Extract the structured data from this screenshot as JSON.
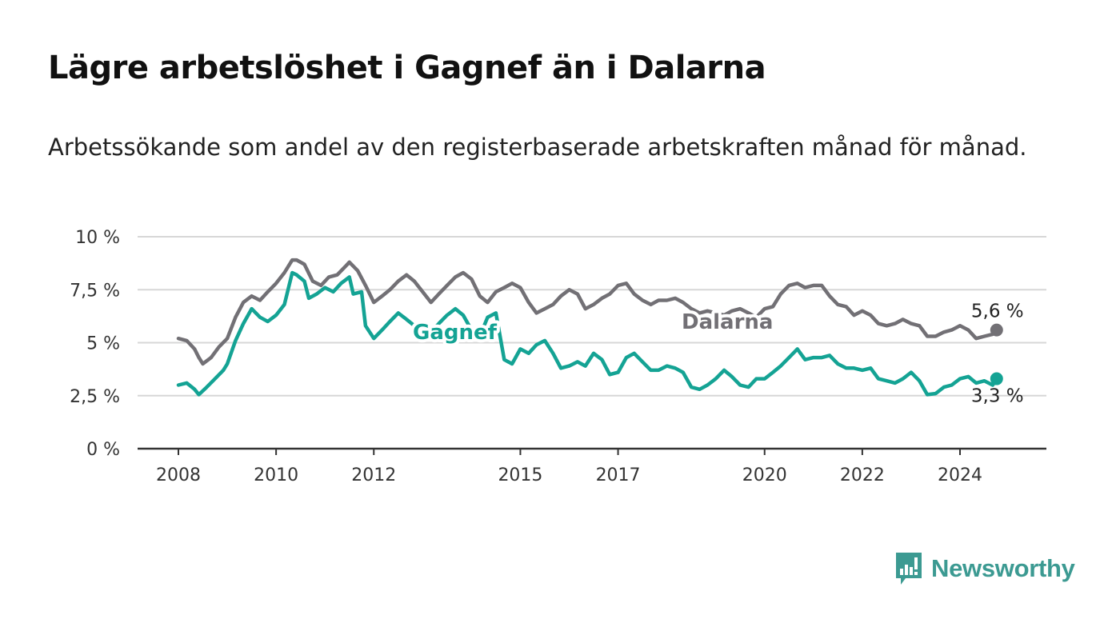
{
  "title": "Lägre arbetslöshet i Gagnef än i Dalarna",
  "subtitle": "Arbetssökande som andel av den registerbaserade arbetskraften månad för månad.",
  "brand": {
    "name": "Newsworthy",
    "color": "#3c9a92",
    "icon": "bar-chart-speech-bubble-icon"
  },
  "chart_data": {
    "type": "line",
    "title": "Lägre arbetslöshet i Gagnef än i Dalarna",
    "subtitle": "Arbetssökande som andel av den registerbaserade arbetskraften månad för månad.",
    "xlabel": "",
    "ylabel": "",
    "x_range": [
      2008.0,
      2024.75
    ],
    "ylim": [
      0,
      10
    ],
    "y_ticks": [
      {
        "value": 0,
        "label": "0 %"
      },
      {
        "value": 2.5,
        "label": "2,5 %"
      },
      {
        "value": 5,
        "label": "5 %"
      },
      {
        "value": 7.5,
        "label": "7,5 %"
      },
      {
        "value": 10,
        "label": "10 %"
      }
    ],
    "x_ticks": [
      {
        "value": 2008,
        "label": "2008"
      },
      {
        "value": 2010,
        "label": "2010"
      },
      {
        "value": 2012,
        "label": "2012"
      },
      {
        "value": 2015,
        "label": "2015"
      },
      {
        "value": 2017,
        "label": "2017"
      },
      {
        "value": 2020,
        "label": "2020"
      },
      {
        "value": 2022,
        "label": "2022"
      },
      {
        "value": 2024,
        "label": "2024"
      }
    ],
    "grid": true,
    "legend": "direct labels on lines",
    "series": [
      {
        "name": "Dalarna",
        "color": "#727075",
        "end_label": "5,6 %",
        "points": [
          [
            2008.0,
            5.2
          ],
          [
            2008.17,
            5.1
          ],
          [
            2008.33,
            4.7
          ],
          [
            2008.42,
            4.3
          ],
          [
            2008.5,
            4.0
          ],
          [
            2008.67,
            4.3
          ],
          [
            2008.83,
            4.8
          ],
          [
            2009.0,
            5.2
          ],
          [
            2009.17,
            6.2
          ],
          [
            2009.33,
            6.9
          ],
          [
            2009.5,
            7.2
          ],
          [
            2009.67,
            7.0
          ],
          [
            2009.83,
            7.4
          ],
          [
            2010.0,
            7.8
          ],
          [
            2010.17,
            8.3
          ],
          [
            2010.33,
            8.9
          ],
          [
            2010.42,
            8.9
          ],
          [
            2010.58,
            8.7
          ],
          [
            2010.75,
            7.9
          ],
          [
            2010.92,
            7.7
          ],
          [
            2011.08,
            8.1
          ],
          [
            2011.25,
            8.2
          ],
          [
            2011.42,
            8.6
          ],
          [
            2011.5,
            8.8
          ],
          [
            2011.67,
            8.4
          ],
          [
            2011.83,
            7.7
          ],
          [
            2012.0,
            6.9
          ],
          [
            2012.17,
            7.2
          ],
          [
            2012.33,
            7.5
          ],
          [
            2012.5,
            7.9
          ],
          [
            2012.67,
            8.2
          ],
          [
            2012.83,
            7.9
          ],
          [
            2013.0,
            7.4
          ],
          [
            2013.17,
            6.9
          ],
          [
            2013.33,
            7.3
          ],
          [
            2013.5,
            7.7
          ],
          [
            2013.67,
            8.1
          ],
          [
            2013.83,
            8.3
          ],
          [
            2014.0,
            8.0
          ],
          [
            2014.17,
            7.2
          ],
          [
            2014.33,
            6.9
          ],
          [
            2014.5,
            7.4
          ],
          [
            2014.67,
            7.6
          ],
          [
            2014.83,
            7.8
          ],
          [
            2015.0,
            7.6
          ],
          [
            2015.17,
            6.9
          ],
          [
            2015.33,
            6.4
          ],
          [
            2015.5,
            6.6
          ],
          [
            2015.67,
            6.8
          ],
          [
            2015.83,
            7.2
          ],
          [
            2016.0,
            7.5
          ],
          [
            2016.17,
            7.3
          ],
          [
            2016.33,
            6.6
          ],
          [
            2016.5,
            6.8
          ],
          [
            2016.67,
            7.1
          ],
          [
            2016.83,
            7.3
          ],
          [
            2017.0,
            7.7
          ],
          [
            2017.17,
            7.8
          ],
          [
            2017.33,
            7.3
          ],
          [
            2017.5,
            7.0
          ],
          [
            2017.67,
            6.8
          ],
          [
            2017.83,
            7.0
          ],
          [
            2018.0,
            7.0
          ],
          [
            2018.17,
            7.1
          ],
          [
            2018.33,
            6.9
          ],
          [
            2018.5,
            6.6
          ],
          [
            2018.67,
            6.4
          ],
          [
            2018.83,
            6.5
          ],
          [
            2019.0,
            6.4
          ],
          [
            2019.17,
            6.3
          ],
          [
            2019.33,
            6.5
          ],
          [
            2019.5,
            6.6
          ],
          [
            2019.67,
            6.4
          ],
          [
            2019.83,
            6.2
          ],
          [
            2020.0,
            6.6
          ],
          [
            2020.17,
            6.7
          ],
          [
            2020.33,
            7.3
          ],
          [
            2020.5,
            7.7
          ],
          [
            2020.67,
            7.8
          ],
          [
            2020.83,
            7.6
          ],
          [
            2021.0,
            7.7
          ],
          [
            2021.17,
            7.7
          ],
          [
            2021.33,
            7.2
          ],
          [
            2021.5,
            6.8
          ],
          [
            2021.67,
            6.7
          ],
          [
            2021.83,
            6.3
          ],
          [
            2022.0,
            6.5
          ],
          [
            2022.17,
            6.3
          ],
          [
            2022.33,
            5.9
          ],
          [
            2022.5,
            5.8
          ],
          [
            2022.67,
            5.9
          ],
          [
            2022.83,
            6.1
          ],
          [
            2023.0,
            5.9
          ],
          [
            2023.17,
            5.8
          ],
          [
            2023.33,
            5.3
          ],
          [
            2023.5,
            5.3
          ],
          [
            2023.67,
            5.5
          ],
          [
            2023.83,
            5.6
          ],
          [
            2024.0,
            5.8
          ],
          [
            2024.17,
            5.6
          ],
          [
            2024.33,
            5.2
          ],
          [
            2024.5,
            5.3
          ],
          [
            2024.67,
            5.4
          ],
          [
            2024.75,
            5.6
          ]
        ]
      },
      {
        "name": "Gagnef",
        "color": "#14a394",
        "end_label": "3,3 %",
        "points": [
          [
            2008.0,
            3.0
          ],
          [
            2008.17,
            3.1
          ],
          [
            2008.33,
            2.8
          ],
          [
            2008.42,
            2.55
          ],
          [
            2008.58,
            2.9
          ],
          [
            2008.75,
            3.3
          ],
          [
            2008.92,
            3.7
          ],
          [
            2009.0,
            4.0
          ],
          [
            2009.17,
            5.1
          ],
          [
            2009.33,
            5.9
          ],
          [
            2009.5,
            6.6
          ],
          [
            2009.67,
            6.2
          ],
          [
            2009.83,
            6.0
          ],
          [
            2010.0,
            6.3
          ],
          [
            2010.17,
            6.8
          ],
          [
            2010.33,
            8.3
          ],
          [
            2010.42,
            8.2
          ],
          [
            2010.58,
            7.9
          ],
          [
            2010.67,
            7.1
          ],
          [
            2010.83,
            7.3
          ],
          [
            2011.0,
            7.6
          ],
          [
            2011.17,
            7.4
          ],
          [
            2011.33,
            7.8
          ],
          [
            2011.5,
            8.1
          ],
          [
            2011.58,
            7.3
          ],
          [
            2011.75,
            7.4
          ],
          [
            2011.83,
            5.8
          ],
          [
            2012.0,
            5.2
          ],
          [
            2012.17,
            5.6
          ],
          [
            2012.33,
            6.0
          ],
          [
            2012.5,
            6.4
          ],
          [
            2012.67,
            6.1
          ],
          [
            2012.83,
            5.8
          ],
          [
            2013.0,
            5.3
          ],
          [
            2013.17,
            5.5
          ],
          [
            2013.33,
            5.9
          ],
          [
            2013.5,
            6.3
          ],
          [
            2013.67,
            6.6
          ],
          [
            2013.83,
            6.3
          ],
          [
            2014.0,
            5.6
          ],
          [
            2014.17,
            5.3
          ],
          [
            2014.33,
            6.2
          ],
          [
            2014.5,
            6.4
          ],
          [
            2014.67,
            4.2
          ],
          [
            2014.83,
            4.0
          ],
          [
            2015.0,
            4.7
          ],
          [
            2015.17,
            4.5
          ],
          [
            2015.33,
            4.9
          ],
          [
            2015.5,
            5.1
          ],
          [
            2015.67,
            4.5
          ],
          [
            2015.83,
            3.8
          ],
          [
            2016.0,
            3.9
          ],
          [
            2016.17,
            4.1
          ],
          [
            2016.33,
            3.9
          ],
          [
            2016.5,
            4.5
          ],
          [
            2016.67,
            4.2
          ],
          [
            2016.83,
            3.5
          ],
          [
            2017.0,
            3.6
          ],
          [
            2017.17,
            4.3
          ],
          [
            2017.33,
            4.5
          ],
          [
            2017.5,
            4.1
          ],
          [
            2017.67,
            3.7
          ],
          [
            2017.83,
            3.7
          ],
          [
            2018.0,
            3.9
          ],
          [
            2018.17,
            3.8
          ],
          [
            2018.33,
            3.6
          ],
          [
            2018.5,
            2.9
          ],
          [
            2018.67,
            2.8
          ],
          [
            2018.83,
            3.0
          ],
          [
            2019.0,
            3.3
          ],
          [
            2019.17,
            3.7
          ],
          [
            2019.33,
            3.4
          ],
          [
            2019.5,
            3.0
          ],
          [
            2019.67,
            2.9
          ],
          [
            2019.83,
            3.3
          ],
          [
            2020.0,
            3.3
          ],
          [
            2020.17,
            3.6
          ],
          [
            2020.33,
            3.9
          ],
          [
            2020.5,
            4.3
          ],
          [
            2020.67,
            4.7
          ],
          [
            2020.83,
            4.2
          ],
          [
            2021.0,
            4.3
          ],
          [
            2021.17,
            4.3
          ],
          [
            2021.33,
            4.4
          ],
          [
            2021.5,
            4.0
          ],
          [
            2021.67,
            3.8
          ],
          [
            2021.83,
            3.8
          ],
          [
            2022.0,
            3.7
          ],
          [
            2022.17,
            3.8
          ],
          [
            2022.33,
            3.3
          ],
          [
            2022.5,
            3.2
          ],
          [
            2022.67,
            3.1
          ],
          [
            2022.83,
            3.3
          ],
          [
            2023.0,
            3.6
          ],
          [
            2023.17,
            3.2
          ],
          [
            2023.33,
            2.55
          ],
          [
            2023.5,
            2.6
          ],
          [
            2023.67,
            2.9
          ],
          [
            2023.83,
            3.0
          ],
          [
            2024.0,
            3.3
          ],
          [
            2024.17,
            3.4
          ],
          [
            2024.33,
            3.1
          ],
          [
            2024.5,
            3.2
          ],
          [
            2024.67,
            3.0
          ],
          [
            2024.75,
            3.3
          ]
        ]
      }
    ]
  }
}
